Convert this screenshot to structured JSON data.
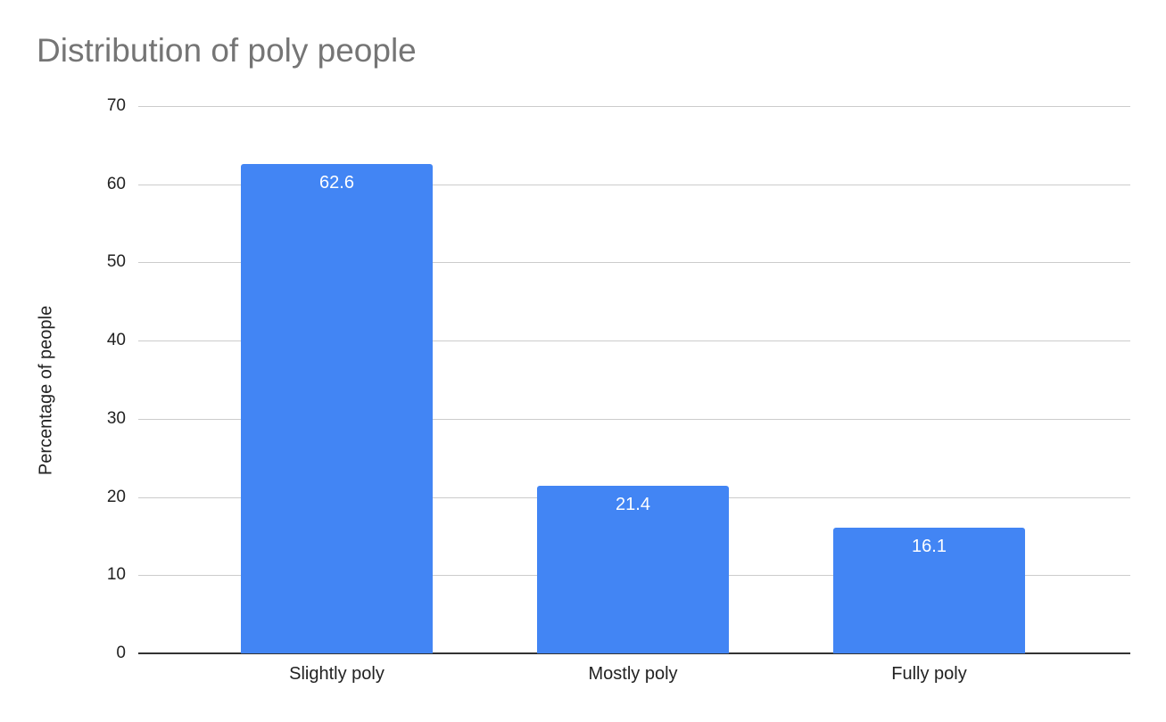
{
  "chart_data": {
    "type": "bar",
    "title": "Distribution of poly people",
    "xlabel": "",
    "ylabel": "Percentage of people",
    "categories": [
      "Slightly poly",
      "Mostly poly",
      "Fully poly"
    ],
    "values": [
      62.6,
      21.4,
      16.1
    ],
    "data_labels": [
      "62.6",
      "21.4",
      "16.1"
    ],
    "ylim": [
      0,
      70
    ],
    "yticks": [
      "0",
      "10",
      "20",
      "30",
      "40",
      "50",
      "60",
      "70"
    ],
    "grid": true,
    "legend": null,
    "bar_color": "#4285f4"
  }
}
